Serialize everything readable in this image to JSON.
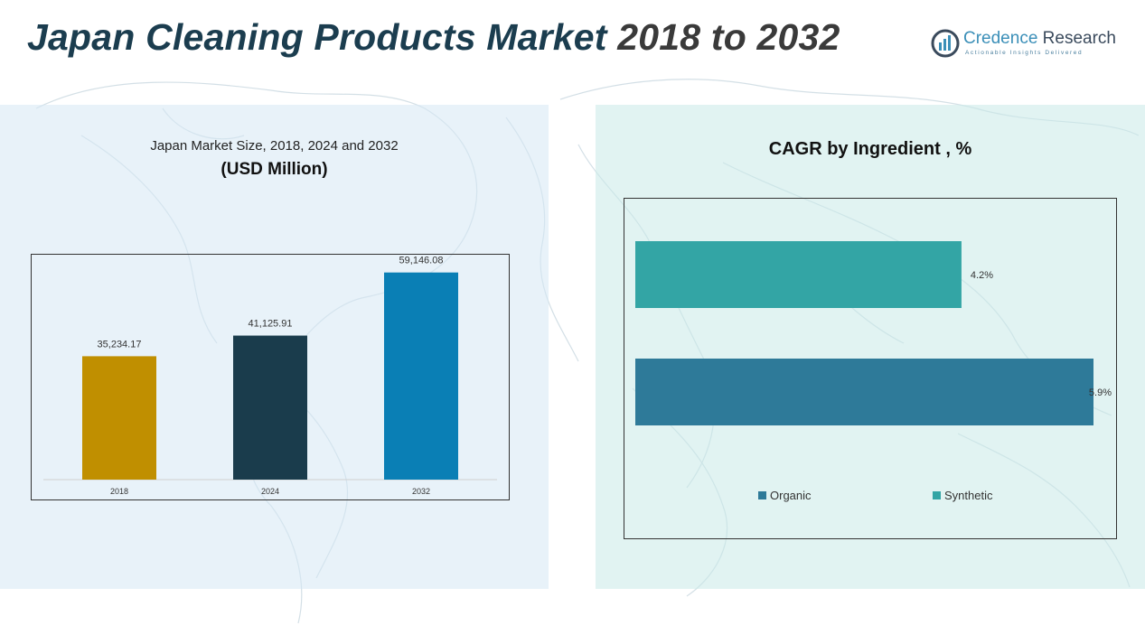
{
  "header": {
    "title_main": "Japan Cleaning Products Market ",
    "title_years": "2018 to 2032"
  },
  "logo": {
    "name_part1": "Credence",
    "name_part2": " Research",
    "tagline": "Actionable Insights Delivered"
  },
  "left_chart": {
    "title": "Japan Market Size, 2018, 2024 and 2032",
    "unit": "(USD Million)"
  },
  "right_chart": {
    "title": "CAGR by Ingredient , %"
  },
  "colors": {
    "bar_2018": "#c08f00",
    "bar_2024": "#1a3c4c",
    "bar_2032": "#0a7fb5",
    "organic": "#2e7a99",
    "synthetic": "#33a5a5"
  },
  "chart_data": [
    {
      "type": "bar",
      "title": "Japan Market Size, 2018, 2024 and 2032",
      "ylabel": "(USD Million)",
      "categories": [
        "2018",
        "2024",
        "2032"
      ],
      "values": [
        35234.17,
        41125.91,
        59146.08
      ],
      "value_labels": [
        "35,234.17",
        "41,125.91",
        "59,146.08"
      ],
      "ylim": [
        0,
        70000
      ],
      "grid": false
    },
    {
      "type": "bar",
      "orientation": "horizontal",
      "title": "CAGR by Ingredient , %",
      "categories": [
        "Synthetic",
        "Organic"
      ],
      "values": [
        4.2,
        5.9
      ],
      "value_labels": [
        "4.2%",
        "5.9%"
      ],
      "legend": [
        "Organic",
        "Synthetic"
      ],
      "legend_position": "bottom",
      "xlim": [
        0,
        5.9
      ],
      "grid": false
    }
  ]
}
